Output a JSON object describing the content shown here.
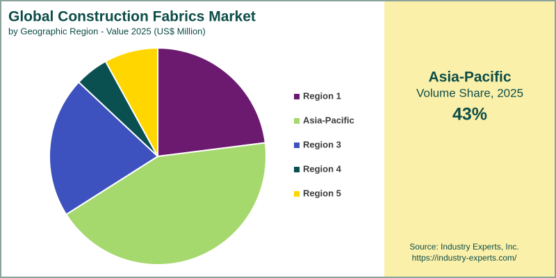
{
  "chart_data": {
    "type": "pie",
    "title": "Global Construction Fabrics Market",
    "subtitle": "by Geographic Region - Value 2025 (US$ Million)",
    "categories": [
      "Region 1",
      "Asia-Pacific",
      "Region 3",
      "Region 4",
      "Region 5"
    ],
    "values": [
      23,
      43,
      21,
      5,
      8
    ],
    "colors": [
      "#6c1a6f",
      "#a5d86d",
      "#3d52be",
      "#0b5050",
      "#ffd600"
    ],
    "legend": "right"
  },
  "highlight": {
    "region": "Asia-Pacific",
    "label": "Volume Share, 2025",
    "value": "43%"
  },
  "source": {
    "line1": "Source: Industry Experts, Inc.",
    "line2": "https://industry-experts.com/"
  }
}
